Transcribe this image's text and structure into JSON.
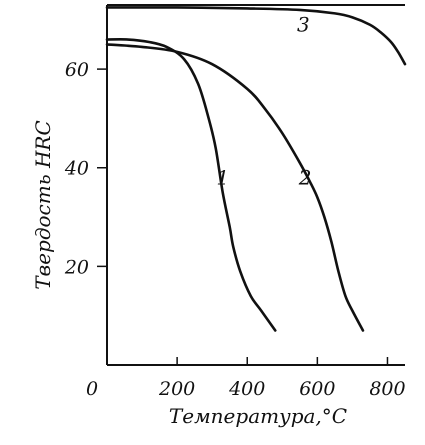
{
  "chart_data": {
    "type": "line",
    "title": "",
    "xlabel": "Температура,°С",
    "ylabel": "Твердость HRC",
    "xlim": [
      0,
      850
    ],
    "ylim": [
      0,
      73
    ],
    "x_ticks": [
      {
        "value": 0,
        "label": "0"
      },
      {
        "value": 200,
        "label": "200"
      },
      {
        "value": 400,
        "label": "400"
      },
      {
        "value": 600,
        "label": "600"
      },
      {
        "value": 800,
        "label": "800"
      }
    ],
    "y_ticks": [
      {
        "value": 20,
        "label": "20"
      },
      {
        "value": 40,
        "label": "40"
      },
      {
        "value": 60,
        "label": "60"
      }
    ],
    "series": [
      {
        "label": "1",
        "label_at": [
          330,
          38
        ],
        "x": [
          0,
          60,
          120,
          170,
          220,
          260,
          290,
          310,
          330,
          350,
          360,
          380,
          410,
          440,
          480
        ],
        "y": [
          66,
          66,
          65.5,
          64.5,
          62,
          57,
          50,
          44,
          35,
          28,
          24,
          19,
          14,
          11,
          7
        ]
      },
      {
        "label": "2",
        "label_at": [
          565,
          38
        ],
        "x": [
          0,
          100,
          200,
          300,
          400,
          450,
          500,
          550,
          580,
          600,
          620,
          640,
          660,
          680,
          700,
          730
        ],
        "y": [
          65,
          64.5,
          63.5,
          61,
          56,
          52,
          47,
          41,
          37,
          34,
          30,
          25,
          19,
          14,
          11,
          7
        ]
      },
      {
        "label": "3",
        "label_at": [
          560,
          69
        ],
        "x": [
          0,
          200,
          400,
          550,
          650,
          700,
          750,
          780,
          810,
          830,
          850
        ],
        "y": [
          72.5,
          72.5,
          72.3,
          72,
          71.3,
          70.5,
          69,
          67.5,
          65.5,
          63.5,
          61
        ]
      }
    ],
    "grid": false,
    "legend": "none"
  }
}
